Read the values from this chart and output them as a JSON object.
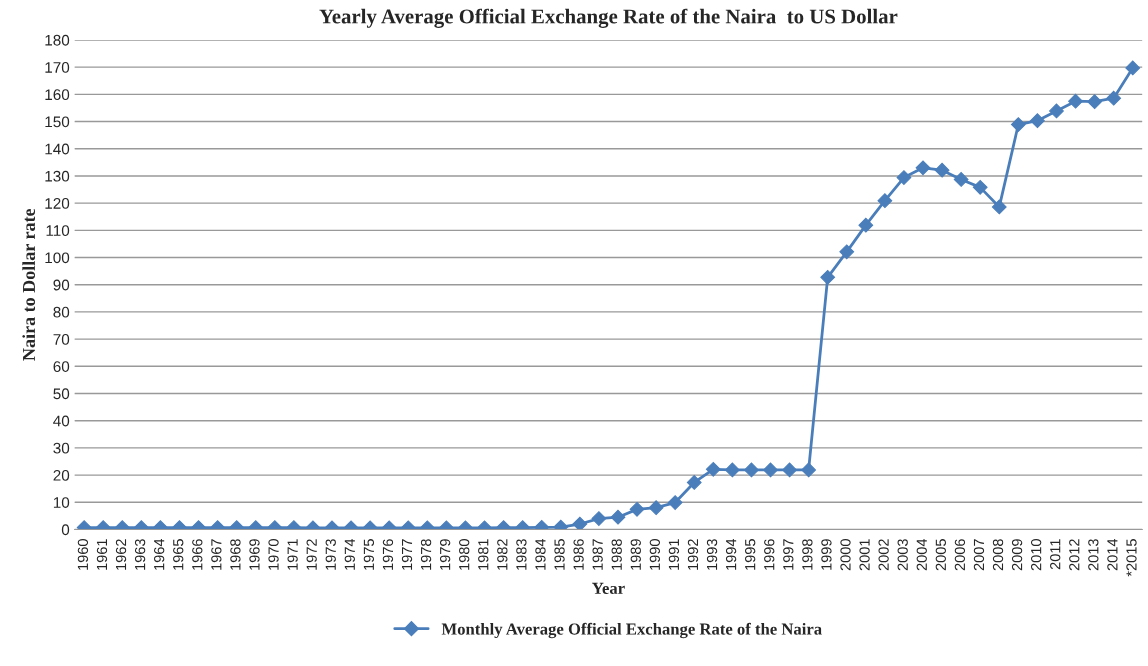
{
  "chart_data": {
    "type": "line",
    "title": "Yearly Average Official Exchange Rate of the Naira  to US Dollar",
    "xlabel": "Year",
    "ylabel": "Naira to Dollar rate",
    "categories": [
      "1960",
      "1961",
      "1962",
      "1963",
      "1964",
      "1965",
      "1966",
      "1967",
      "1968",
      "1969",
      "1970",
      "1971",
      "1972",
      "1973",
      "1974",
      "1975",
      "1976",
      "1977",
      "1978",
      "1979",
      "1980",
      "1981",
      "1982",
      "1983",
      "1984",
      "1985",
      "1986",
      "1987",
      "1988",
      "1989",
      "1990",
      "1991",
      "1992",
      "1993",
      "1994",
      "1995",
      "1996",
      "1997",
      "1998",
      "1999",
      "2000",
      "2001",
      "2002",
      "2003",
      "2004",
      "2005",
      "2006",
      "2007",
      "2008",
      "2009",
      "2010",
      "2011",
      "2012",
      "2013",
      "2014",
      "*2015"
    ],
    "series": [
      {
        "name": "Monthly Average Official Exchange Rate of the Naira",
        "color": "#4a7ebb",
        "values": [
          0.7,
          0.7,
          0.7,
          0.7,
          0.7,
          0.7,
          0.7,
          0.7,
          0.7,
          0.7,
          0.7,
          0.7,
          0.6,
          0.6,
          0.6,
          0.6,
          0.6,
          0.6,
          0.6,
          0.6,
          0.6,
          0.6,
          0.7,
          0.7,
          0.8,
          0.9,
          2.0,
          4.0,
          4.5,
          7.4,
          8.0,
          9.9,
          17.3,
          22.1,
          21.9,
          21.9,
          21.9,
          21.9,
          21.9,
          92.7,
          102.1,
          111.9,
          120.9,
          129.4,
          133.0,
          132.1,
          128.7,
          125.8,
          118.6,
          148.9,
          150.3,
          153.9,
          157.5,
          157.3,
          158.6,
          169.7
        ]
      }
    ],
    "ylim": [
      0,
      180
    ],
    "yticks": [
      0,
      10,
      20,
      30,
      40,
      50,
      60,
      70,
      80,
      90,
      100,
      110,
      120,
      130,
      140,
      150,
      160,
      170,
      180
    ],
    "grid": "y",
    "legend": "bottom",
    "marker": "diamond",
    "line_style": "solid"
  }
}
